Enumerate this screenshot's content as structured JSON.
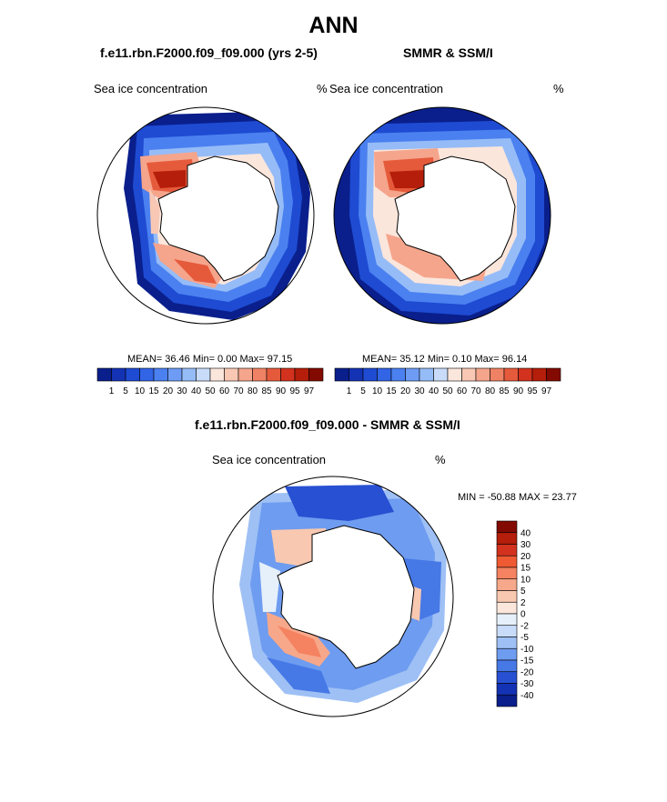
{
  "figure": {
    "title": "ANN",
    "model_title": "f.e11.rbn.F2000.f09_f09.000 (yrs 2-5)",
    "obs_title": "SMMR & SSM/I",
    "diff_title": "f.e11.rbn.F2000.f09_f09.000 - SMMR & SSM/I"
  },
  "panels": {
    "model": {
      "variable": "Sea ice concentration",
      "units": "%",
      "stats": "MEAN=  36.46  Min=   0.00  Max=  97.15"
    },
    "obs": {
      "variable": "Sea ice concentration",
      "units": "%",
      "stats": "MEAN=  35.12  Min=   0.10  Max=  96.14"
    },
    "diff": {
      "variable": "Sea ice concentration",
      "units": "%",
      "stats": "MIN = -50.88 MAX =  23.77"
    }
  },
  "colorbars": {
    "concentration": {
      "ticks": [
        "1",
        "5",
        "10",
        "15",
        "20",
        "30",
        "40",
        "50",
        "60",
        "70",
        "80",
        "85",
        "90",
        "95",
        "97"
      ],
      "colors": [
        "#0a1f8c",
        "#1432b4",
        "#1e4bd2",
        "#3264e6",
        "#4b80f0",
        "#6e9cf5",
        "#96bcf7",
        "#c8dcfa",
        "#fbe6dc",
        "#f8c8b4",
        "#f5a58c",
        "#ef8264",
        "#e65a3c",
        "#d2321e",
        "#b41e0a",
        "#820a00"
      ]
    },
    "difference": {
      "ticks": [
        "40",
        "30",
        "20",
        "15",
        "10",
        "5",
        "2",
        "0",
        "-2",
        "-5",
        "-10",
        "-15",
        "-20",
        "-30",
        "-40"
      ],
      "colors": [
        "#820a00",
        "#b41e0a",
        "#d2321e",
        "#ef5a32",
        "#f58260",
        "#f7a88a",
        "#f9c8b0",
        "#fbe6dc",
        "#e6f0fb",
        "#c8dcfa",
        "#9ec0f5",
        "#6e9cf0",
        "#4678e6",
        "#2850d2",
        "#1432b4",
        "#0a1f8c"
      ]
    }
  }
}
